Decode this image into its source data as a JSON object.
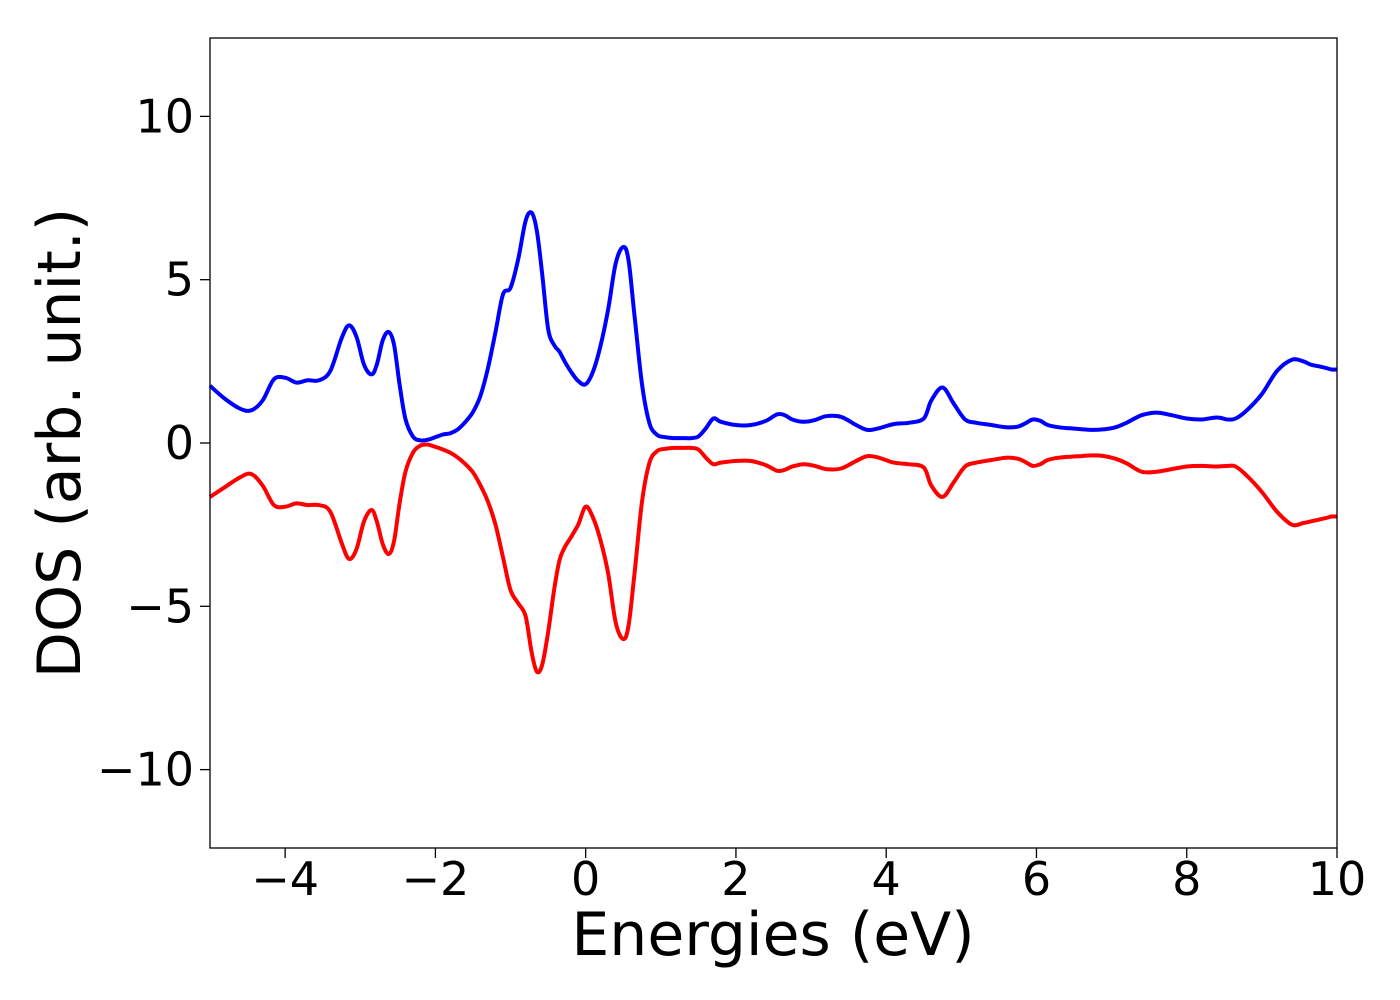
{
  "chart_data": {
    "type": "line",
    "title": "",
    "xlabel": "Energies (eV)",
    "ylabel": "DOS (arb. unit.)",
    "xlim": [
      -5,
      10
    ],
    "ylim": [
      -12.4,
      12.4
    ],
    "xticks": [
      -4,
      -2,
      0,
      2,
      4,
      6,
      8,
      10
    ],
    "xtick_labels": [
      "−4",
      "−2",
      "0",
      "2",
      "4",
      "6",
      "8",
      "10"
    ],
    "yticks": [
      -10,
      -5,
      0,
      5,
      10
    ],
    "ytick_labels": [
      "−10",
      "−5",
      "0",
      "5",
      "10"
    ],
    "grid": false,
    "legend": "none",
    "series": [
      {
        "color": "#0000ff",
        "x": [
          -5.0,
          -4.8,
          -4.6,
          -4.45,
          -4.3,
          -4.15,
          -4.0,
          -3.85,
          -3.7,
          -3.55,
          -3.4,
          -3.25,
          -3.15,
          -3.05,
          -2.95,
          -2.85,
          -2.78,
          -2.7,
          -2.62,
          -2.55,
          -2.48,
          -2.4,
          -2.3,
          -2.2,
          -2.1,
          -2.0,
          -1.9,
          -1.8,
          -1.7,
          -1.6,
          -1.5,
          -1.4,
          -1.3,
          -1.2,
          -1.1,
          -1.0,
          -0.9,
          -0.8,
          -0.72,
          -0.65,
          -0.58,
          -0.5,
          -0.42,
          -0.35,
          -0.28,
          -0.2,
          -0.1,
          0.0,
          0.1,
          0.2,
          0.3,
          0.4,
          0.5,
          0.57,
          0.65,
          0.75,
          0.85,
          0.95,
          1.05,
          1.12,
          1.17,
          1.22,
          1.3,
          1.4,
          1.5,
          1.6,
          1.7,
          1.8,
          2.0,
          2.2,
          2.4,
          2.55,
          2.65,
          2.75,
          2.9,
          3.05,
          3.2,
          3.4,
          3.6,
          3.75,
          3.9,
          4.1,
          4.3,
          4.5,
          4.6,
          4.75,
          4.9,
          5.05,
          5.2,
          5.4,
          5.6,
          5.75,
          5.85,
          5.95,
          6.05,
          6.15,
          6.3,
          6.45,
          6.6,
          6.75,
          6.9,
          7.05,
          7.2,
          7.4,
          7.6,
          7.8,
          8.0,
          8.2,
          8.4,
          8.55,
          8.65,
          8.8,
          9.0,
          9.2,
          9.4,
          9.55,
          9.65,
          9.75,
          9.85,
          9.93,
          10.0
        ],
        "y": [
          1.75,
          1.35,
          1.05,
          1.0,
          1.3,
          1.95,
          2.0,
          1.85,
          1.92,
          1.92,
          2.2,
          3.2,
          3.6,
          3.25,
          2.4,
          2.1,
          2.4,
          3.15,
          3.4,
          3.0,
          1.85,
          0.75,
          0.2,
          0.08,
          0.1,
          0.18,
          0.26,
          0.3,
          0.42,
          0.65,
          0.95,
          1.45,
          2.3,
          3.4,
          4.55,
          4.75,
          5.6,
          6.8,
          7.05,
          6.5,
          5.2,
          3.5,
          3.0,
          2.8,
          2.5,
          2.2,
          1.9,
          1.8,
          2.2,
          3.0,
          4.1,
          5.5,
          6.0,
          5.6,
          3.9,
          1.8,
          0.6,
          0.25,
          0.18,
          0.16,
          0.15,
          0.15,
          0.15,
          0.15,
          0.2,
          0.45,
          0.75,
          0.65,
          0.55,
          0.55,
          0.68,
          0.88,
          0.85,
          0.72,
          0.65,
          0.7,
          0.82,
          0.8,
          0.55,
          0.4,
          0.45,
          0.58,
          0.62,
          0.75,
          1.3,
          1.7,
          1.2,
          0.72,
          0.62,
          0.55,
          0.48,
          0.5,
          0.6,
          0.72,
          0.68,
          0.55,
          0.48,
          0.45,
          0.42,
          0.4,
          0.42,
          0.48,
          0.62,
          0.85,
          0.93,
          0.85,
          0.75,
          0.72,
          0.78,
          0.72,
          0.75,
          1.0,
          1.5,
          2.2,
          2.55,
          2.5,
          2.4,
          2.35,
          2.3,
          2.25,
          2.25
        ]
      },
      {
        "color": "#ff0000",
        "x": [
          -5.0,
          -4.8,
          -4.6,
          -4.45,
          -4.3,
          -4.15,
          -4.0,
          -3.85,
          -3.7,
          -3.55,
          -3.4,
          -3.25,
          -3.15,
          -3.05,
          -2.95,
          -2.85,
          -2.78,
          -2.7,
          -2.62,
          -2.55,
          -2.48,
          -2.4,
          -2.3,
          -2.2,
          -2.1,
          -2.0,
          -1.9,
          -1.8,
          -1.7,
          -1.6,
          -1.5,
          -1.4,
          -1.3,
          -1.2,
          -1.1,
          -1.0,
          -0.9,
          -0.8,
          -0.72,
          -0.65,
          -0.58,
          -0.5,
          -0.42,
          -0.35,
          -0.28,
          -0.2,
          -0.1,
          0.0,
          0.1,
          0.2,
          0.3,
          0.4,
          0.5,
          0.57,
          0.65,
          0.75,
          0.85,
          0.95,
          1.05,
          1.12,
          1.17,
          1.22,
          1.3,
          1.4,
          1.5,
          1.6,
          1.7,
          1.8,
          2.0,
          2.2,
          2.4,
          2.55,
          2.65,
          2.75,
          2.9,
          3.05,
          3.2,
          3.4,
          3.6,
          3.75,
          3.9,
          4.1,
          4.3,
          4.5,
          4.6,
          4.75,
          4.9,
          5.05,
          5.2,
          5.4,
          5.6,
          5.75,
          5.85,
          5.95,
          6.05,
          6.15,
          6.3,
          6.45,
          6.6,
          6.75,
          6.9,
          7.05,
          7.2,
          7.4,
          7.6,
          7.8,
          8.0,
          8.2,
          8.4,
          8.55,
          8.65,
          8.8,
          9.0,
          9.2,
          9.4,
          9.55,
          9.65,
          9.75,
          9.85,
          9.93,
          10.0
        ],
        "y": [
          -1.65,
          -1.35,
          -1.05,
          -0.95,
          -1.3,
          -1.9,
          -1.95,
          -1.85,
          -1.9,
          -1.9,
          -2.1,
          -3.05,
          -3.55,
          -3.25,
          -2.4,
          -2.05,
          -2.4,
          -3.1,
          -3.4,
          -3.0,
          -1.9,
          -0.9,
          -0.3,
          -0.08,
          -0.05,
          -0.12,
          -0.2,
          -0.3,
          -0.45,
          -0.65,
          -0.9,
          -1.3,
          -1.8,
          -2.5,
          -3.5,
          -4.5,
          -4.9,
          -5.3,
          -6.4,
          -7.0,
          -6.8,
          -5.8,
          -4.5,
          -3.6,
          -3.2,
          -2.9,
          -2.5,
          -1.95,
          -2.3,
          -3.0,
          -4.0,
          -5.5,
          -6.0,
          -5.6,
          -4.0,
          -1.8,
          -0.6,
          -0.25,
          -0.18,
          -0.16,
          -0.15,
          -0.15,
          -0.15,
          -0.15,
          -0.2,
          -0.45,
          -0.65,
          -0.6,
          -0.55,
          -0.55,
          -0.68,
          -0.85,
          -0.82,
          -0.72,
          -0.65,
          -0.7,
          -0.8,
          -0.78,
          -0.55,
          -0.4,
          -0.45,
          -0.6,
          -0.65,
          -0.75,
          -1.3,
          -1.65,
          -1.2,
          -0.72,
          -0.6,
          -0.52,
          -0.45,
          -0.48,
          -0.58,
          -0.7,
          -0.65,
          -0.52,
          -0.45,
          -0.42,
          -0.4,
          -0.38,
          -0.4,
          -0.48,
          -0.62,
          -0.88,
          -0.88,
          -0.8,
          -0.72,
          -0.7,
          -0.72,
          -0.7,
          -0.72,
          -1.0,
          -1.5,
          -2.1,
          -2.5,
          -2.45,
          -2.4,
          -2.35,
          -2.3,
          -2.25,
          -2.25
        ]
      }
    ]
  }
}
